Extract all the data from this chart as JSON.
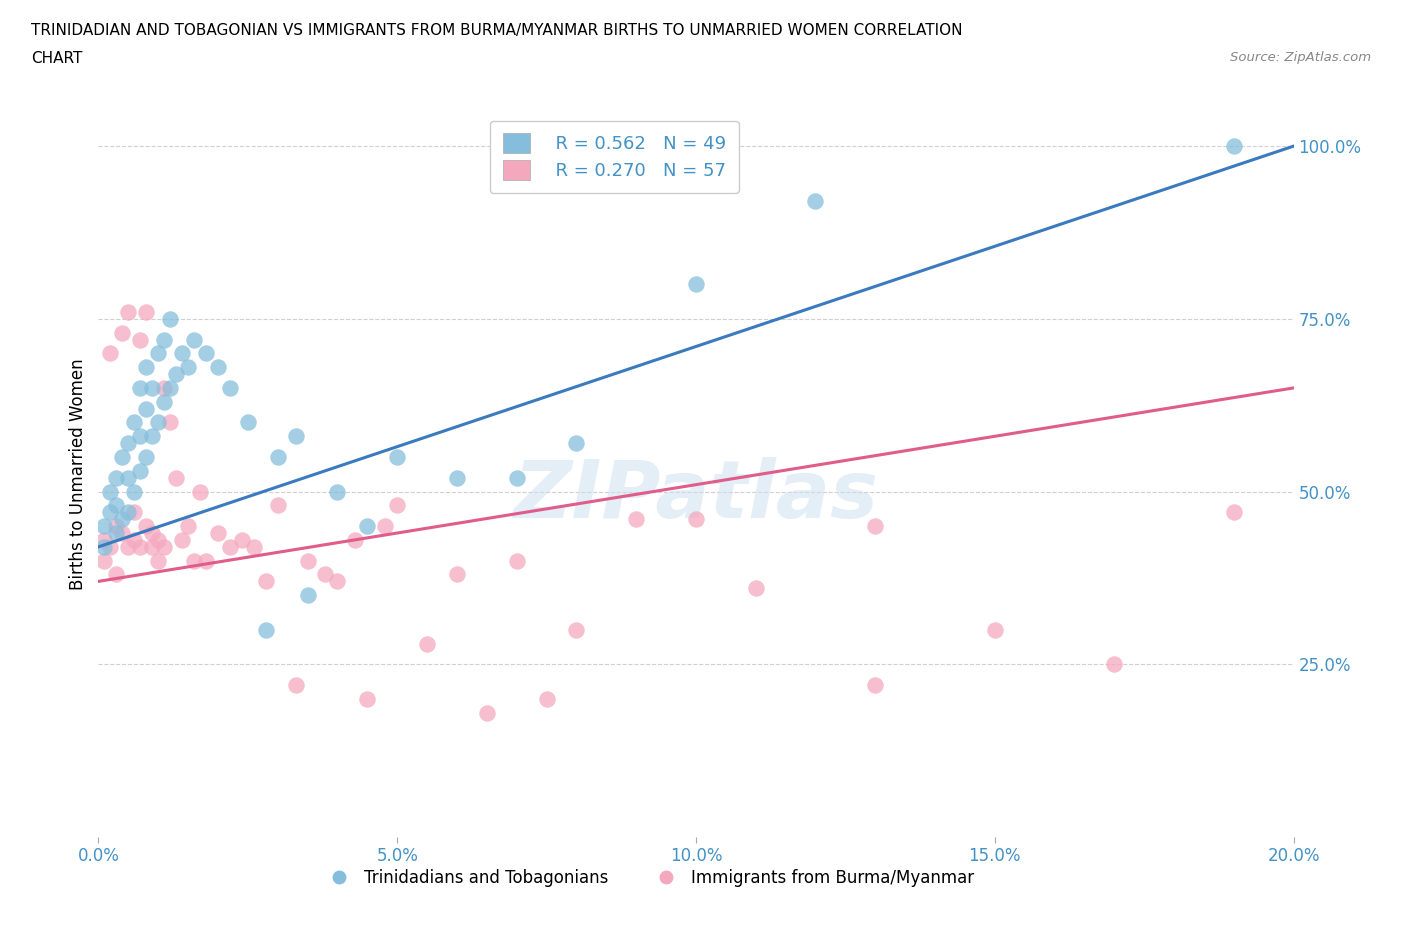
{
  "title_line1": "TRINIDADIAN AND TOBAGONIAN VS IMMIGRANTS FROM BURMA/MYANMAR BIRTHS TO UNMARRIED WOMEN CORRELATION",
  "title_line2": "CHART",
  "source_text": "Source: ZipAtlas.com",
  "ylabel": "Births to Unmarried Women",
  "watermark": "ZIPatlas",
  "legend_r1": "R = 0.562   N = 49",
  "legend_r2": "R = 0.270   N = 57",
  "legend_label1": "Trinidadians and Tobagonians",
  "legend_label2": "Immigrants from Burma/Myanmar",
  "blue_color": "#85bedc",
  "pink_color": "#f4a8be",
  "line_blue": "#3a7abf",
  "line_pink": "#e05c8a",
  "legend_text_color": "#4292c6",
  "tick_color": "#4292c6",
  "grid_color": "#d0d0d0",
  "xlim": [
    0.0,
    0.2
  ],
  "ylim": [
    0.0,
    1.05
  ],
  "yticks": [
    0.25,
    0.5,
    0.75,
    1.0
  ],
  "ytick_labels": [
    "25.0%",
    "50.0%",
    "75.0%",
    "100.0%"
  ],
  "xticks": [
    0.0,
    0.05,
    0.1,
    0.15,
    0.2
  ],
  "xtick_labels": [
    "0.0%",
    "5.0%",
    "10.0%",
    "15.0%",
    "20.0%"
  ],
  "blue_line_y0": 0.42,
  "blue_line_y1": 1.0,
  "pink_line_y0": 0.37,
  "pink_line_y1": 0.65,
  "blue_x": [
    0.001,
    0.001,
    0.002,
    0.002,
    0.003,
    0.003,
    0.003,
    0.004,
    0.004,
    0.005,
    0.005,
    0.005,
    0.006,
    0.006,
    0.007,
    0.007,
    0.007,
    0.008,
    0.008,
    0.008,
    0.009,
    0.009,
    0.01,
    0.01,
    0.011,
    0.011,
    0.012,
    0.012,
    0.013,
    0.014,
    0.015,
    0.016,
    0.018,
    0.02,
    0.022,
    0.025,
    0.028,
    0.033,
    0.04,
    0.05,
    0.06,
    0.08,
    0.1,
    0.12,
    0.03,
    0.035,
    0.045,
    0.07,
    0.19
  ],
  "blue_y": [
    0.42,
    0.45,
    0.47,
    0.5,
    0.44,
    0.48,
    0.52,
    0.46,
    0.55,
    0.47,
    0.52,
    0.57,
    0.5,
    0.6,
    0.53,
    0.58,
    0.65,
    0.55,
    0.62,
    0.68,
    0.58,
    0.65,
    0.6,
    0.7,
    0.63,
    0.72,
    0.65,
    0.75,
    0.67,
    0.7,
    0.68,
    0.72,
    0.7,
    0.68,
    0.65,
    0.6,
    0.3,
    0.58,
    0.5,
    0.55,
    0.52,
    0.57,
    0.8,
    0.92,
    0.55,
    0.35,
    0.45,
    0.52,
    1.0
  ],
  "pink_x": [
    0.001,
    0.001,
    0.002,
    0.002,
    0.003,
    0.003,
    0.004,
    0.004,
    0.005,
    0.005,
    0.006,
    0.006,
    0.007,
    0.007,
    0.008,
    0.008,
    0.009,
    0.009,
    0.01,
    0.01,
    0.011,
    0.011,
    0.012,
    0.013,
    0.014,
    0.015,
    0.016,
    0.017,
    0.018,
    0.02,
    0.022,
    0.024,
    0.026,
    0.028,
    0.03,
    0.033,
    0.035,
    0.038,
    0.04,
    0.043,
    0.045,
    0.048,
    0.05,
    0.055,
    0.06,
    0.065,
    0.07,
    0.075,
    0.08,
    0.09,
    0.1,
    0.11,
    0.13,
    0.15,
    0.17,
    0.19,
    0.13
  ],
  "pink_y": [
    0.4,
    0.43,
    0.42,
    0.7,
    0.38,
    0.45,
    0.44,
    0.73,
    0.42,
    0.76,
    0.43,
    0.47,
    0.72,
    0.42,
    0.45,
    0.76,
    0.44,
    0.42,
    0.43,
    0.4,
    0.65,
    0.42,
    0.6,
    0.52,
    0.43,
    0.45,
    0.4,
    0.5,
    0.4,
    0.44,
    0.42,
    0.43,
    0.42,
    0.37,
    0.48,
    0.22,
    0.4,
    0.38,
    0.37,
    0.43,
    0.2,
    0.45,
    0.48,
    0.28,
    0.38,
    0.18,
    0.4,
    0.2,
    0.3,
    0.46,
    0.46,
    0.36,
    0.22,
    0.3,
    0.25,
    0.47,
    0.45
  ]
}
